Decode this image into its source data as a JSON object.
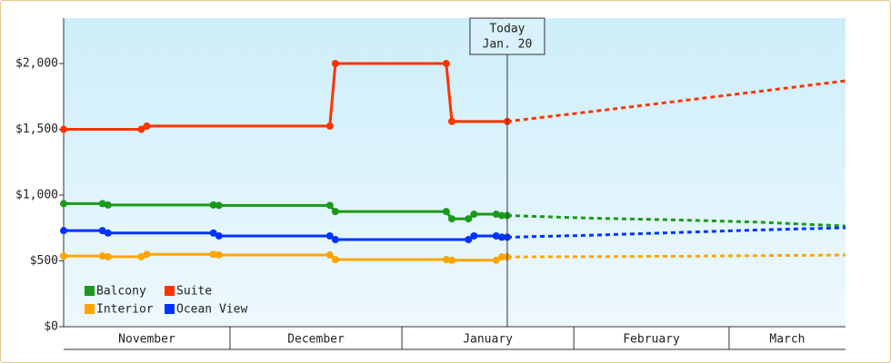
{
  "chart_data": {
    "type": "line",
    "xlim": [
      0,
      141
    ],
    "xticks": [
      {
        "value": 0,
        "label": "November"
      },
      {
        "value": 30,
        "label": "December"
      },
      {
        "value": 61,
        "label": "January"
      },
      {
        "value": 92,
        "label": "February"
      },
      {
        "value": 120,
        "label": "March"
      }
    ],
    "ylim": [
      0,
      2345
    ],
    "yticks": [
      {
        "value": 0,
        "label": "$0"
      },
      {
        "value": 500,
        "label": "$500"
      },
      {
        "value": 1000,
        "label": "$1,000"
      },
      {
        "value": 1500,
        "label": "$1,500"
      },
      {
        "value": 2000,
        "label": "$2,000"
      }
    ],
    "today": {
      "x": 80,
      "lines": [
        "Today",
        "Jan. 20"
      ]
    },
    "legend": "lower left",
    "series": [
      {
        "name": "Balcony",
        "color": "#1a9a1a",
        "x": [
          0,
          7,
          8,
          27,
          28,
          48,
          49,
          69,
          70,
          73,
          74,
          78,
          79,
          80
        ],
        "values": [
          935,
          935,
          925,
          925,
          922,
          922,
          875,
          875,
          820,
          820,
          855,
          855,
          845,
          845
        ],
        "forecast_x": [
          80,
          95,
          110,
          125,
          141
        ],
        "forecast_values": [
          845,
          825,
          812,
          795,
          765
        ]
      },
      {
        "name": "Suite",
        "color": "#ff3300",
        "x": [
          0,
          14,
          15,
          48,
          49,
          69,
          70,
          80
        ],
        "values": [
          1500,
          1500,
          1525,
          1525,
          2000,
          2000,
          1560,
          1560
        ],
        "forecast_x": [
          80,
          95,
          110,
          125,
          141
        ],
        "forecast_values": [
          1560,
          1634,
          1710,
          1786,
          1869
        ]
      },
      {
        "name": "Interior",
        "color": "#ffa500",
        "x": [
          0,
          7,
          8,
          14,
          15,
          27,
          28,
          48,
          49,
          69,
          70,
          78,
          79,
          80
        ],
        "values": [
          537,
          537,
          532,
          532,
          550,
          550,
          545,
          545,
          510,
          510,
          505,
          505,
          530,
          530
        ],
        "forecast_x": [
          80,
          110,
          141
        ],
        "forecast_values": [
          530,
          535,
          545
        ]
      },
      {
        "name": "Ocean View",
        "color": "#0033ff",
        "x": [
          0,
          7,
          8,
          27,
          28,
          48,
          49,
          73,
          74,
          78,
          79,
          80
        ],
        "values": [
          730,
          730,
          712,
          712,
          690,
          690,
          662,
          662,
          690,
          690,
          680,
          680
        ],
        "forecast_x": [
          80,
          95,
          110,
          125,
          141
        ],
        "forecast_values": [
          680,
          695,
          715,
          735,
          752
        ]
      }
    ]
  }
}
